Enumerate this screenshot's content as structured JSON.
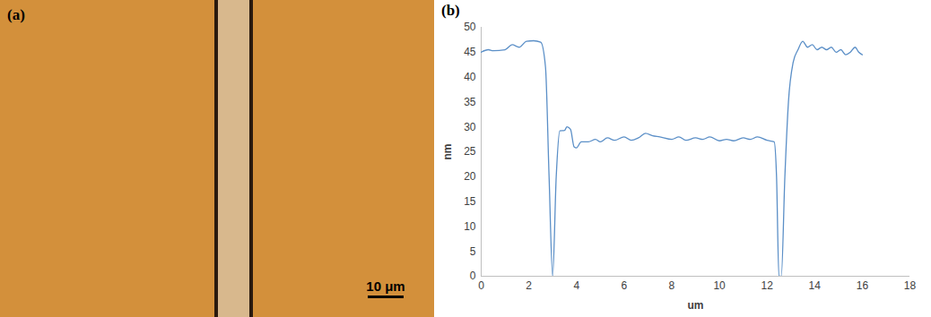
{
  "image": {
    "label": "(a)",
    "scale_bar": "10 μm"
  },
  "chart_data": {
    "type": "line",
    "label": "(b)",
    "x_label": "um",
    "y_label": "nm",
    "x": [
      0,
      0.3,
      0.5,
      1,
      1.3,
      1.6,
      1.9,
      2.2,
      2.5,
      2.7,
      2.85,
      3.0,
      3.15,
      3.3,
      3.5,
      3.6,
      3.75,
      3.9,
      4.0,
      4.2,
      4.5,
      4.8,
      5,
      5.3,
      5.6,
      6,
      6.3,
      6.6,
      6.9,
      7.2,
      7.5,
      8,
      8.3,
      8.6,
      9,
      9.3,
      9.6,
      10,
      10.3,
      10.6,
      11,
      11.3,
      11.6,
      12,
      12.3,
      12.4,
      12.5,
      12.6,
      12.75,
      12.9,
      13.1,
      13.3,
      13.5,
      13.7,
      13.9,
      14.1,
      14.3,
      14.5,
      14.7,
      14.9,
      15.1,
      15.3,
      15.5,
      15.7,
      15.85,
      16
    ],
    "series": [
      {
        "name": null,
        "color": "#5b8fc7",
        "values": [
          45,
          45.5,
          45.3,
          45.5,
          46.5,
          46,
          47.2,
          47.3,
          47,
          42,
          20,
          0,
          20,
          29.2,
          29.3,
          30,
          29.5,
          26,
          25.8,
          27,
          27,
          27.5,
          27,
          27.8,
          27.3,
          28,
          27.3,
          27.8,
          28.7,
          28.2,
          28,
          27.5,
          28,
          27.3,
          27.8,
          27.5,
          28,
          27.2,
          27.5,
          27.2,
          27.8,
          27.5,
          28,
          27.3,
          27,
          20,
          0,
          0,
          20,
          35,
          43,
          45.5,
          47.2,
          46,
          46.5,
          45.5,
          46,
          45.5,
          46,
          45,
          45.5,
          44.5,
          45,
          46,
          45,
          44.5
        ]
      }
    ],
    "xlim": [
      0,
      18
    ],
    "xticks": [
      0,
      2,
      4,
      6,
      8,
      10,
      12,
      14,
      16,
      18
    ],
    "ylim": [
      0,
      50
    ],
    "yticks": [
      0,
      5,
      10,
      15,
      20,
      25,
      30,
      35,
      40,
      45,
      50
    ],
    "grid": false
  }
}
